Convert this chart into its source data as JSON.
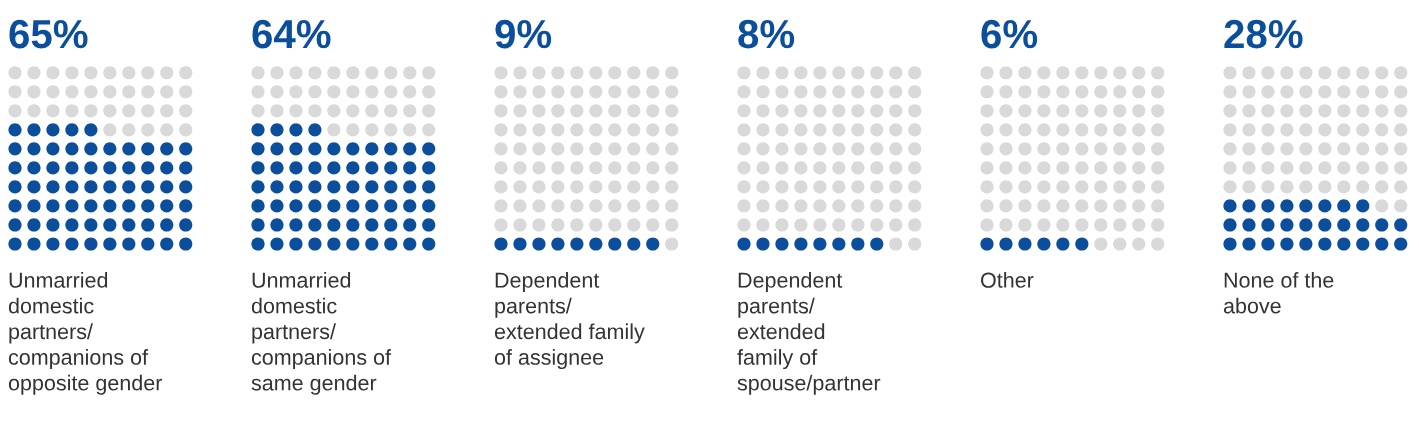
{
  "chart_data": {
    "type": "other",
    "categories": [
      "Unmarried\ndomestic\npartners/\ncompanions of\nopposite gender",
      "Unmarried\ndomestic\npartners/\ncompanions of\nsame gender",
      "Dependent\nparents/\nextended family\nof assignee",
      "Dependent\nparents/\nextended\nfamily of\nspouse/partner",
      "Other",
      "None of the\nabove"
    ],
    "values": [
      65,
      64,
      9,
      8,
      6,
      28
    ],
    "value_labels": [
      "65%",
      "64%",
      "9%",
      "8%",
      "6%",
      "28%"
    ],
    "color": "#0b4f9c"
  }
}
